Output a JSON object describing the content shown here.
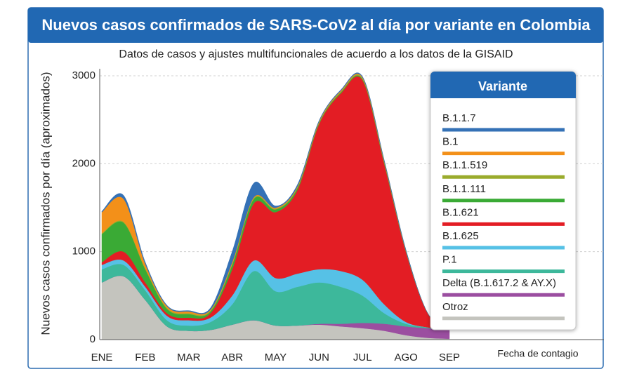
{
  "chart_data": {
    "type": "stacked_area",
    "title": "Nuevos casos confirmados de SARS-CoV2 al día por variante en Colombia",
    "subtitle": "Datos de casos y ajustes multifuncionales de acuerdo a los datos de la GISAID",
    "y_label": "Nuevos casos confirmados por día (aproximados)",
    "x_label": "Fecha de contagio",
    "legend_title": "Variante",
    "categories": [
      "ENE",
      null,
      "FEB",
      null,
      "MAR",
      null,
      "ABR",
      null,
      "MAY",
      null,
      "JUN",
      null,
      "JUL",
      null,
      "AGO",
      null,
      "SEP"
    ],
    "ylim": [
      0,
      3000
    ],
    "yticks": [
      0,
      1000,
      2000,
      3000
    ],
    "grid": true,
    "series": [
      {
        "name": "B.1.1.7",
        "color": "#3471b6",
        "values": [
          10,
          40,
          20,
          10,
          10,
          20,
          120,
          160,
          20,
          20,
          10,
          10,
          10,
          10,
          10,
          0,
          0
        ]
      },
      {
        "name": "B.1",
        "color": "#f39019",
        "values": [
          240,
          260,
          50,
          20,
          20,
          10,
          20,
          10,
          10,
          10,
          10,
          10,
          10,
          10,
          0,
          0,
          0
        ]
      },
      {
        "name": "B.1.1.519",
        "color": "#9aab2c",
        "values": [
          10,
          10,
          10,
          10,
          10,
          10,
          10,
          10,
          10,
          10,
          10,
          10,
          10,
          10,
          10,
          0,
          0
        ]
      },
      {
        "name": "B.1.1.111",
        "color": "#3aaa35",
        "values": [
          320,
          330,
          150,
          50,
          40,
          20,
          50,
          50,
          30,
          20,
          10,
          10,
          10,
          10,
          0,
          0,
          0
        ]
      },
      {
        "name": "B.1.621",
        "color": "#e31d24",
        "values": [
          30,
          100,
          50,
          30,
          30,
          50,
          300,
          650,
          750,
          950,
          1650,
          2020,
          2270,
          1600,
          800,
          160,
          0
        ]
      },
      {
        "name": "B.1.625",
        "color": "#56c1e6",
        "values": [
          50,
          50,
          40,
          50,
          60,
          50,
          100,
          120,
          150,
          150,
          150,
          180,
          180,
          100,
          20,
          0,
          0
        ]
      },
      {
        "name": "P.1",
        "color": "#3db89b",
        "values": [
          150,
          130,
          110,
          70,
          60,
          90,
          230,
          560,
          390,
          440,
          470,
          420,
          310,
          120,
          30,
          10,
          0
        ]
      },
      {
        "name": "Delta (B.1.617.2 & AY.X)",
        "color": "#9b4ea0",
        "values": [
          0,
          0,
          0,
          0,
          0,
          0,
          0,
          0,
          0,
          0,
          10,
          30,
          60,
          80,
          100,
          110,
          100
        ]
      },
      {
        "name": "Otroz",
        "color": "#c4c4be",
        "values": [
          650,
          720,
          450,
          150,
          100,
          110,
          170,
          220,
          160,
          160,
          170,
          150,
          130,
          100,
          50,
          20,
          10
        ]
      }
    ]
  }
}
